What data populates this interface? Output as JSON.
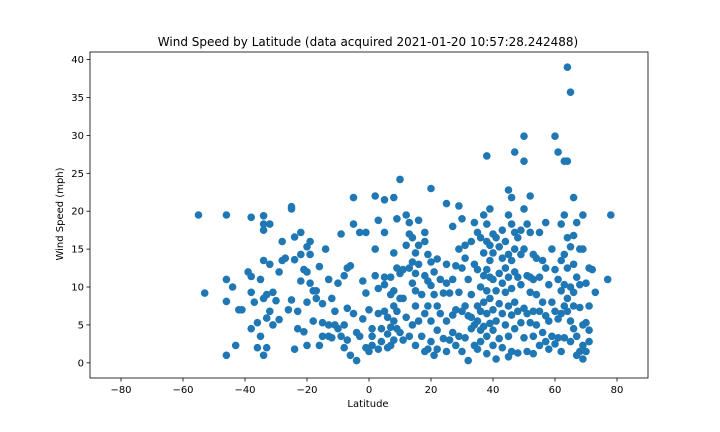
{
  "chart_data": {
    "type": "scatter",
    "title": "Wind Speed by Latitude (data acquired 2021-01-20 10:57:28.242488)",
    "xlabel": "Latitude",
    "ylabel": "Wind Speed (mph)",
    "xlim": [
      -90,
      90
    ],
    "ylim": [
      -2,
      41
    ],
    "xticks": [
      -80,
      -60,
      -40,
      -20,
      0,
      20,
      40,
      60,
      80
    ],
    "yticks": [
      0,
      5,
      10,
      15,
      20,
      25,
      30,
      35,
      40
    ],
    "grid": false,
    "marker_color": "#1f77b4",
    "points": [
      [
        -55,
        19.5
      ],
      [
        -53,
        9.2
      ],
      [
        -46,
        19.5
      ],
      [
        -46,
        11
      ],
      [
        -46,
        8.1
      ],
      [
        -46,
        1
      ],
      [
        -44,
        10
      ],
      [
        -43,
        2.3
      ],
      [
        -42,
        7
      ],
      [
        -41,
        7
      ],
      [
        -39,
        12
      ],
      [
        -38,
        11.4
      ],
      [
        -38,
        19.2
      ],
      [
        -38,
        9.3
      ],
      [
        -38,
        4.5
      ],
      [
        -37,
        8
      ],
      [
        -36,
        2
      ],
      [
        -36,
        5.3
      ],
      [
        -35,
        3.5
      ],
      [
        -35,
        11
      ],
      [
        -34,
        18.3
      ],
      [
        -34,
        17.5
      ],
      [
        -34,
        19.4
      ],
      [
        -34,
        13.5
      ],
      [
        -34,
        8.5
      ],
      [
        -34,
        1
      ],
      [
        -33,
        9
      ],
      [
        -33,
        5.9
      ],
      [
        -33,
        2
      ],
      [
        -32,
        18.3
      ],
      [
        -32,
        13
      ],
      [
        -32,
        6.8
      ],
      [
        -31,
        9.3
      ],
      [
        -31,
        5
      ],
      [
        -30,
        8.2
      ],
      [
        -29,
        12
      ],
      [
        -29,
        5.7
      ],
      [
        -28,
        13.5
      ],
      [
        -28,
        16
      ],
      [
        -27,
        13.8
      ],
      [
        -26,
        7
      ],
      [
        -25,
        8.3
      ],
      [
        -25,
        20.3
      ],
      [
        -25,
        20.6
      ],
      [
        -24,
        16.6
      ],
      [
        -24,
        13.6
      ],
      [
        -24,
        1.8
      ],
      [
        -23,
        4.5
      ],
      [
        -23,
        6.8
      ],
      [
        -22,
        10.8
      ],
      [
        -22,
        14.3
      ],
      [
        -22,
        17.2
      ],
      [
        -21,
        12.3
      ],
      [
        -21,
        4.1
      ],
      [
        -20,
        2.3
      ],
      [
        -20,
        12
      ],
      [
        -20,
        8
      ],
      [
        -20,
        15.3
      ],
      [
        -19,
        16
      ],
      [
        -19,
        14.3
      ],
      [
        -19,
        10.5
      ],
      [
        -18,
        5.5
      ],
      [
        -18,
        9.5
      ],
      [
        -17,
        9.5
      ],
      [
        -17,
        8.5
      ],
      [
        -16,
        2.3
      ],
      [
        -16,
        12.7
      ],
      [
        -15,
        3.5
      ],
      [
        -15,
        5.3
      ],
      [
        -15,
        7.8
      ],
      [
        -14,
        15
      ],
      [
        -13,
        11
      ],
      [
        -13,
        5
      ],
      [
        -13,
        3.5
      ],
      [
        -12,
        8.5
      ],
      [
        -12,
        3.3
      ],
      [
        -11,
        6.8
      ],
      [
        -11,
        5
      ],
      [
        -10,
        10.5
      ],
      [
        -10,
        4.5
      ],
      [
        -9,
        17
      ],
      [
        -9,
        3.5
      ],
      [
        -8,
        5
      ],
      [
        -8,
        2
      ],
      [
        -8,
        11.5
      ],
      [
        -7,
        12.5
      ],
      [
        -7,
        7.2
      ],
      [
        -7,
        3
      ],
      [
        -6,
        12.8
      ],
      [
        -6,
        1
      ],
      [
        -5,
        18.3
      ],
      [
        -5,
        21.8
      ],
      [
        -5,
        6.5
      ],
      [
        -4,
        0.3
      ],
      [
        -4,
        4
      ],
      [
        -3,
        17.2
      ],
      [
        -3,
        3.5
      ],
      [
        -2,
        10.8
      ],
      [
        -2,
        5.8
      ],
      [
        -1,
        17.2
      ],
      [
        -1,
        2
      ],
      [
        -1,
        9.2
      ],
      [
        0,
        1.5
      ],
      [
        0,
        7
      ],
      [
        1,
        3.5
      ],
      [
        1,
        2.3
      ],
      [
        1,
        4.5
      ],
      [
        2,
        22
      ],
      [
        2,
        15
      ],
      [
        2,
        11.5
      ],
      [
        3,
        18.8
      ],
      [
        3,
        9.8
      ],
      [
        3,
        6.5
      ],
      [
        3,
        1.8
      ],
      [
        4,
        4.5
      ],
      [
        4,
        2.8
      ],
      [
        5,
        21.5
      ],
      [
        5,
        17.2
      ],
      [
        5,
        11.3
      ],
      [
        5,
        10.3
      ],
      [
        5,
        6.8
      ],
      [
        6,
        6
      ],
      [
        6,
        3.8
      ],
      [
        6,
        2
      ],
      [
        7,
        11.3
      ],
      [
        7,
        9
      ],
      [
        7,
        4.7
      ],
      [
        7,
        2.3
      ],
      [
        8,
        21.8
      ],
      [
        8,
        14.5
      ],
      [
        8,
        9.5
      ],
      [
        8,
        7.5
      ],
      [
        8,
        5.5
      ],
      [
        8,
        3
      ],
      [
        9,
        19
      ],
      [
        9,
        12.5
      ],
      [
        9,
        6.8
      ],
      [
        9,
        4.5
      ],
      [
        10,
        24.2
      ],
      [
        10,
        11.8
      ],
      [
        10,
        8.5
      ],
      [
        10,
        4
      ],
      [
        11,
        12.3
      ],
      [
        11,
        8.5
      ],
      [
        11,
        3
      ],
      [
        12,
        19.5
      ],
      [
        12,
        15.5
      ],
      [
        12,
        6
      ],
      [
        13,
        18.5
      ],
      [
        13,
        17
      ],
      [
        13,
        12.5
      ],
      [
        13,
        3.5
      ],
      [
        14,
        16.5
      ],
      [
        14,
        13.3
      ],
      [
        14,
        10.5
      ],
      [
        14,
        5
      ],
      [
        15,
        14.5
      ],
      [
        15,
        11.8
      ],
      [
        15,
        9.5
      ],
      [
        15,
        7.5
      ],
      [
        15,
        2.3
      ],
      [
        16,
        18.8
      ],
      [
        16,
        15.5
      ],
      [
        16,
        13
      ],
      [
        16,
        5.5
      ],
      [
        17,
        9
      ],
      [
        17,
        3.5
      ],
      [
        18,
        17.2
      ],
      [
        18,
        16
      ],
      [
        18,
        11.5
      ],
      [
        18,
        6.5
      ],
      [
        18,
        1.5
      ],
      [
        19,
        14.3
      ],
      [
        19,
        10.8
      ],
      [
        19,
        7.5
      ],
      [
        19,
        1.8
      ],
      [
        20,
        23
      ],
      [
        20,
        13.3
      ],
      [
        20,
        10.2
      ],
      [
        20,
        5.5
      ],
      [
        20,
        2.8
      ],
      [
        21,
        12
      ],
      [
        21,
        9
      ],
      [
        21,
        1
      ],
      [
        22,
        13.7
      ],
      [
        22,
        7.5
      ],
      [
        22,
        4.3
      ],
      [
        22,
        1.8
      ],
      [
        23,
        11
      ],
      [
        23,
        6.5
      ],
      [
        24,
        9.2
      ],
      [
        24,
        3.2
      ],
      [
        25,
        21
      ],
      [
        25,
        13
      ],
      [
        25,
        10.5
      ],
      [
        25,
        5.5
      ],
      [
        25,
        1.5
      ],
      [
        26,
        9.2
      ],
      [
        26,
        3
      ],
      [
        27,
        18
      ],
      [
        27,
        11
      ],
      [
        27,
        6.3
      ],
      [
        27,
        4
      ],
      [
        28,
        12.8
      ],
      [
        28,
        7
      ],
      [
        28,
        2.3
      ],
      [
        29,
        20.7
      ],
      [
        29,
        15
      ],
      [
        29,
        9.3
      ],
      [
        29,
        3.5
      ],
      [
        30,
        19
      ],
      [
        30,
        12.5
      ],
      [
        30,
        6.8
      ],
      [
        30,
        1.5
      ],
      [
        31,
        15.5
      ],
      [
        31,
        13.8
      ],
      [
        31,
        7.5
      ],
      [
        31,
        3.3
      ],
      [
        32,
        11
      ],
      [
        32,
        6.2
      ],
      [
        32,
        0.3
      ],
      [
        33,
        16
      ],
      [
        33,
        9
      ],
      [
        33,
        6
      ],
      [
        33,
        4.5
      ],
      [
        34,
        18.5
      ],
      [
        34,
        13
      ],
      [
        34,
        5
      ],
      [
        34,
        2.3
      ],
      [
        35,
        17.2
      ],
      [
        35,
        12.3
      ],
      [
        35,
        7.5
      ],
      [
        35,
        5.5
      ],
      [
        35,
        1.8
      ],
      [
        36,
        16.5
      ],
      [
        36,
        10
      ],
      [
        36,
        6.8
      ],
      [
        36,
        4.3
      ],
      [
        36,
        2.8
      ],
      [
        37,
        19.5
      ],
      [
        37,
        14.5
      ],
      [
        37,
        11.5
      ],
      [
        37,
        8
      ],
      [
        37,
        4.8
      ],
      [
        38,
        27.3
      ],
      [
        38,
        18.3
      ],
      [
        38,
        16
      ],
      [
        38,
        12.3
      ],
      [
        38,
        9.5
      ],
      [
        38,
        6.5
      ],
      [
        38,
        3.5
      ],
      [
        38,
        1.2
      ],
      [
        39,
        20.3
      ],
      [
        39,
        15.5
      ],
      [
        39,
        13.5
      ],
      [
        39,
        11.3
      ],
      [
        39,
        8.5
      ],
      [
        39,
        5.2
      ],
      [
        40,
        17
      ],
      [
        40,
        14.5
      ],
      [
        40,
        11
      ],
      [
        40,
        7
      ],
      [
        40,
        4.3
      ],
      [
        40,
        2.3
      ],
      [
        41,
        16.5
      ],
      [
        41,
        9.5
      ],
      [
        41,
        5.5
      ],
      [
        41,
        0.5
      ],
      [
        42,
        15.3
      ],
      [
        42,
        11.8
      ],
      [
        42,
        7.8
      ],
      [
        42,
        3.2
      ],
      [
        43,
        17.5
      ],
      [
        43,
        13.8
      ],
      [
        43,
        10.5
      ],
      [
        43,
        6.5
      ],
      [
        43,
        2
      ],
      [
        44,
        16
      ],
      [
        44,
        12.5
      ],
      [
        44,
        9.3
      ],
      [
        44,
        5
      ],
      [
        45,
        22.8
      ],
      [
        45,
        19.5
      ],
      [
        45,
        14.3
      ],
      [
        45,
        11.3
      ],
      [
        45,
        7.5
      ],
      [
        45,
        3.5
      ],
      [
        45,
        0.8
      ],
      [
        46,
        21.8
      ],
      [
        46,
        18.3
      ],
      [
        46,
        13.5
      ],
      [
        46,
        9.8
      ],
      [
        46,
        6.3
      ],
      [
        46,
        1.5
      ],
      [
        47,
        27.8
      ],
      [
        47,
        17.2
      ],
      [
        47,
        15
      ],
      [
        47,
        12
      ],
      [
        47,
        8
      ],
      [
        47,
        4.5
      ],
      [
        48,
        16.5
      ],
      [
        48,
        11.3
      ],
      [
        48,
        6.8
      ],
      [
        48,
        1.3
      ],
      [
        49,
        17.5
      ],
      [
        49,
        14.3
      ],
      [
        49,
        10.3
      ],
      [
        49,
        5.3
      ],
      [
        50,
        29.9
      ],
      [
        50,
        26.6
      ],
      [
        50,
        20.3
      ],
      [
        50,
        15
      ],
      [
        50,
        7.2
      ],
      [
        50,
        3.3
      ],
      [
        51,
        18.3
      ],
      [
        51,
        11.5
      ],
      [
        51,
        6.5
      ],
      [
        51,
        1.5
      ],
      [
        52,
        22
      ],
      [
        52,
        17.2
      ],
      [
        52,
        11.3
      ],
      [
        52,
        9.3
      ],
      [
        52,
        5.3
      ],
      [
        53,
        14.3
      ],
      [
        53,
        11
      ],
      [
        53,
        6.8
      ],
      [
        53,
        3.5
      ],
      [
        53,
        1.2
      ],
      [
        54,
        13.8
      ],
      [
        54,
        9
      ],
      [
        54,
        5
      ],
      [
        55,
        17.2
      ],
      [
        55,
        11.3
      ],
      [
        55,
        6.8
      ],
      [
        55,
        2.3
      ],
      [
        56,
        13.5
      ],
      [
        56,
        8
      ],
      [
        56,
        4
      ],
      [
        57,
        18.5
      ],
      [
        57,
        12.5
      ],
      [
        57,
        6.2
      ],
      [
        57,
        2.8
      ],
      [
        58,
        10.3
      ],
      [
        58,
        5.5
      ],
      [
        58,
        1.8
      ],
      [
        59,
        15
      ],
      [
        59,
        8
      ],
      [
        59,
        3.5
      ],
      [
        60,
        29.9
      ],
      [
        60,
        12.3
      ],
      [
        60,
        6.8
      ],
      [
        60,
        2.5
      ],
      [
        61,
        27.8
      ],
      [
        61,
        11
      ],
      [
        61,
        5.8
      ],
      [
        61,
        3.3
      ],
      [
        62,
        18.3
      ],
      [
        62,
        13.5
      ],
      [
        62,
        9.5
      ],
      [
        62,
        6.5
      ],
      [
        62,
        1.5
      ],
      [
        63,
        26.6
      ],
      [
        63,
        19.5
      ],
      [
        63,
        14.3
      ],
      [
        63,
        10.3
      ],
      [
        63,
        7.5
      ],
      [
        63,
        3.3
      ],
      [
        64,
        39
      ],
      [
        64,
        26.6
      ],
      [
        64,
        16.5
      ],
      [
        64,
        12.5
      ],
      [
        64,
        8.5
      ],
      [
        64,
        6.8
      ],
      [
        65,
        35.7
      ],
      [
        65,
        15.3
      ],
      [
        65,
        10
      ],
      [
        65,
        5.5
      ],
      [
        65,
        2.8
      ],
      [
        66,
        21.8
      ],
      [
        66,
        16.8
      ],
      [
        66,
        13
      ],
      [
        66,
        9.3
      ],
      [
        66,
        7.5
      ],
      [
        66,
        4.5
      ],
      [
        67,
        18.5
      ],
      [
        67,
        11.3
      ],
      [
        67,
        3.5
      ],
      [
        67,
        1
      ],
      [
        68,
        15
      ],
      [
        68,
        10.3
      ],
      [
        68,
        7.3
      ],
      [
        68,
        1.5
      ],
      [
        69,
        19.5
      ],
      [
        69,
        15
      ],
      [
        69,
        5
      ],
      [
        69,
        2.3
      ],
      [
        69,
        0.5
      ],
      [
        70,
        10.5
      ],
      [
        70,
        5.3
      ],
      [
        70,
        1.5
      ],
      [
        71,
        12.5
      ],
      [
        71,
        7.5
      ],
      [
        71,
        4.3
      ],
      [
        71,
        2.8
      ],
      [
        72,
        12.3
      ],
      [
        73,
        9.3
      ],
      [
        77,
        11
      ],
      [
        78,
        19.5
      ]
    ]
  }
}
